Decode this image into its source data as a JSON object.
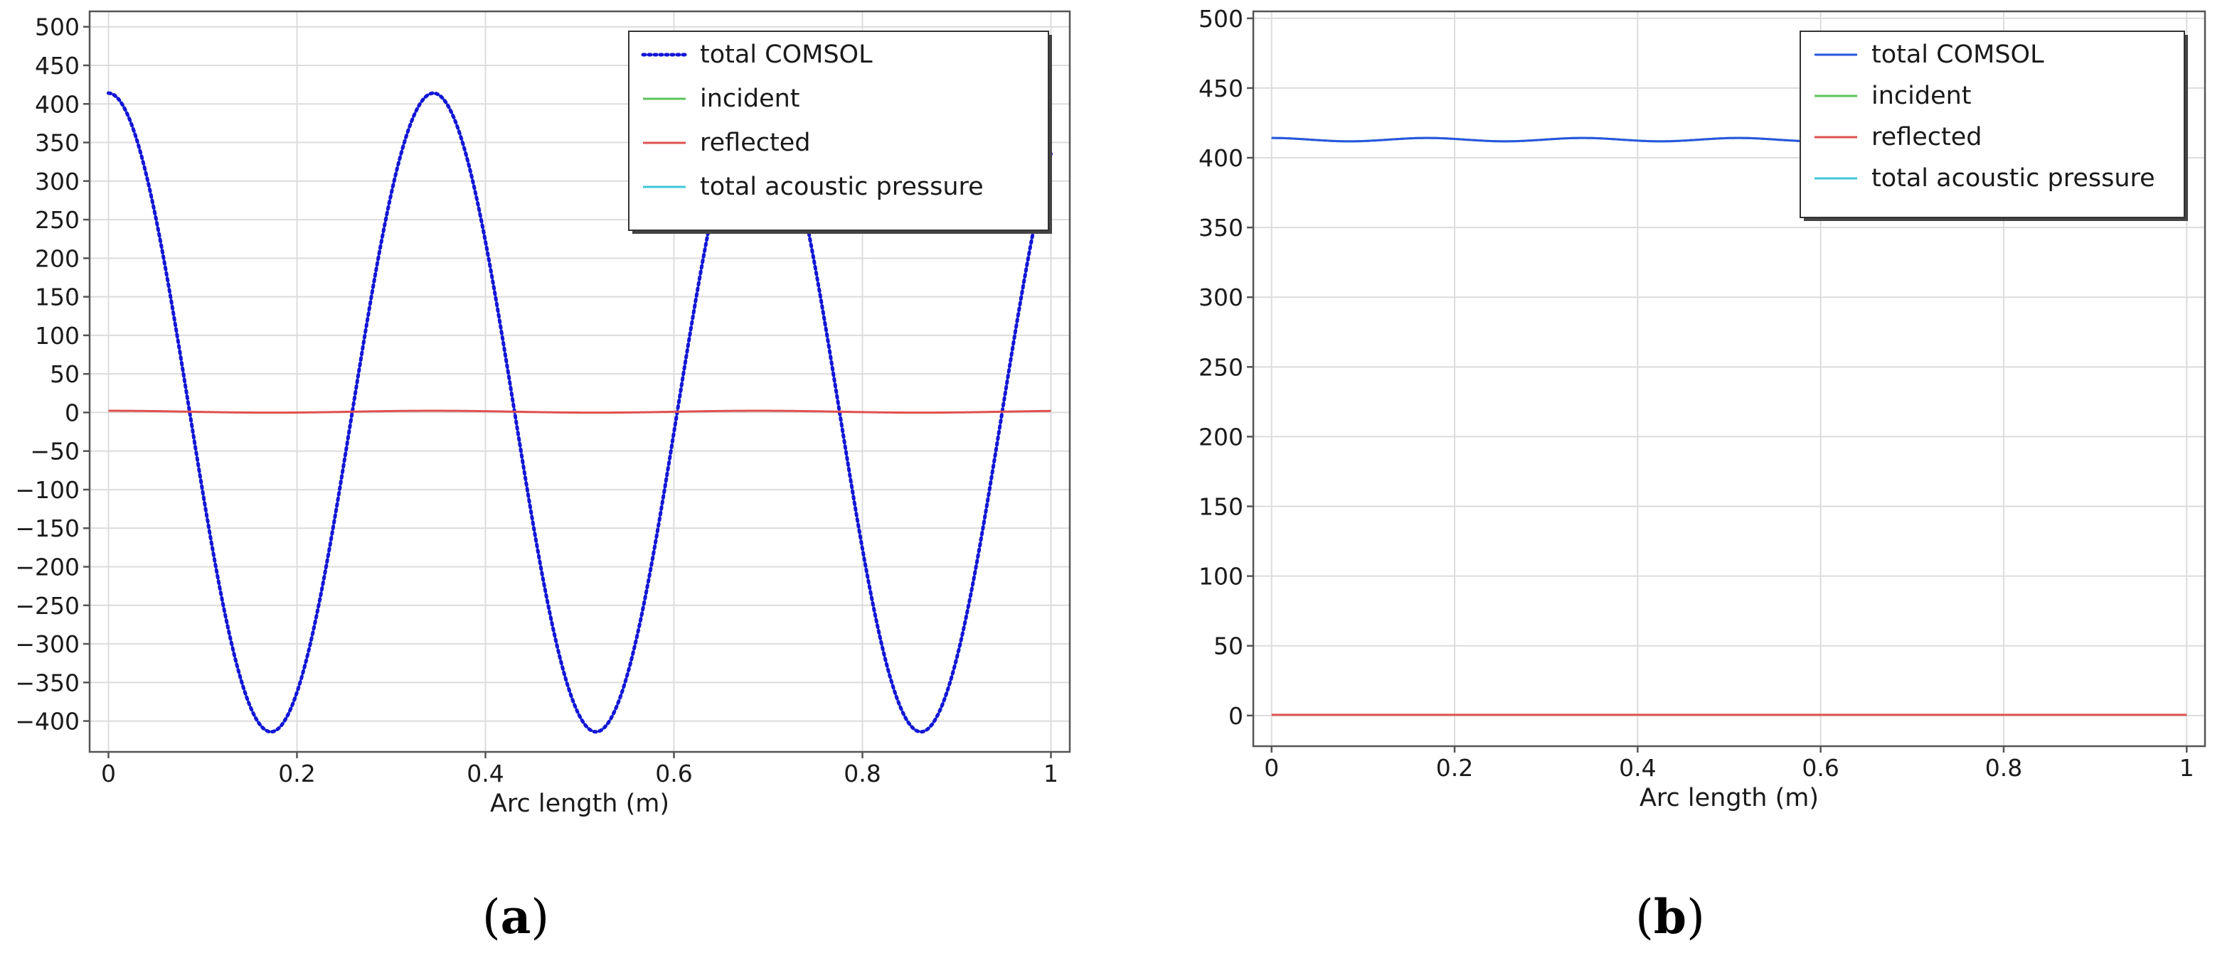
{
  "chart_data": [
    {
      "type": "line",
      "caption_letter": "a",
      "xlabel": "Arc length (m)",
      "ylabel": "",
      "xlim": [
        -0.02,
        1.02
      ],
      "ylim": [
        -440,
        520
      ],
      "xticks": [
        0,
        0.2,
        0.4,
        0.6,
        0.8,
        1
      ],
      "xtick_labels": [
        "0",
        "0.2",
        "0.4",
        "0.6",
        "0.8",
        "1"
      ],
      "yticks": [
        500,
        450,
        400,
        350,
        300,
        250,
        200,
        150,
        100,
        50,
        0,
        -50,
        -100,
        -150,
        -200,
        -250,
        -300,
        -350,
        -400
      ],
      "ytick_labels": [
        "500",
        "450",
        "400",
        "350",
        "300",
        "250",
        "200",
        "150",
        "100",
        "50",
        "0",
        "−50",
        "−100",
        "−150",
        "−200",
        "−250",
        "−300",
        "−350",
        "−400"
      ],
      "grid": true,
      "legend_position": "top-right",
      "series": [
        {
          "name": "total COMSOL",
          "color": "#1515d6",
          "style": "dotted",
          "function": "cos",
          "amplitude": 414,
          "wavelength_m": 0.3448,
          "offset": 0
        },
        {
          "name": "incident",
          "color": "#5cc35c",
          "style": "solid",
          "function": "cos",
          "amplitude": 414,
          "wavelength_m": 0.3448,
          "offset": 0
        },
        {
          "name": "reflected",
          "color": "#e05050",
          "style": "solid",
          "function": "cos",
          "amplitude": 1.2,
          "wavelength_m": 0.3448,
          "offset": 1
        },
        {
          "name": "total acoustic pressure",
          "color": "#3ec6d8",
          "style": "solid",
          "function": "cos",
          "amplitude": 414,
          "wavelength_m": 0.3448,
          "offset": 0
        }
      ]
    },
    {
      "type": "line",
      "caption_letter": "b",
      "xlabel": "Arc length (m)",
      "ylabel": "",
      "xlim": [
        -0.02,
        1.02
      ],
      "ylim": [
        -22,
        505
      ],
      "xticks": [
        0,
        0.2,
        0.4,
        0.6,
        0.8,
        1
      ],
      "xtick_labels": [
        "0",
        "0.2",
        "0.4",
        "0.6",
        "0.8",
        "1"
      ],
      "yticks": [
        500,
        450,
        400,
        350,
        300,
        250,
        200,
        150,
        100,
        50,
        0
      ],
      "ytick_labels": [
        "500",
        "450",
        "400",
        "350",
        "300",
        "250",
        "200",
        "150",
        "100",
        "50",
        "0"
      ],
      "grid": true,
      "legend_position": "top-right",
      "series": [
        {
          "name": "total COMSOL",
          "color": "#2b55e0",
          "style": "solid",
          "function": "const",
          "value": 413,
          "ripple": 1.2,
          "wavelength_m": 0.17
        },
        {
          "name": "incident",
          "color": "#5cc35c",
          "style": "solid",
          "function": "const",
          "value": 413,
          "ripple": 1.2,
          "wavelength_m": 0.17
        },
        {
          "name": "reflected",
          "color": "#e05050",
          "style": "solid",
          "function": "const",
          "value": 0.5,
          "ripple": 0,
          "wavelength_m": 0.17
        },
        {
          "name": "total acoustic pressure",
          "color": "#3ec6d8",
          "style": "solid",
          "function": "const",
          "value": 413,
          "ripple": 1.2,
          "wavelength_m": 0.17
        }
      ]
    }
  ]
}
